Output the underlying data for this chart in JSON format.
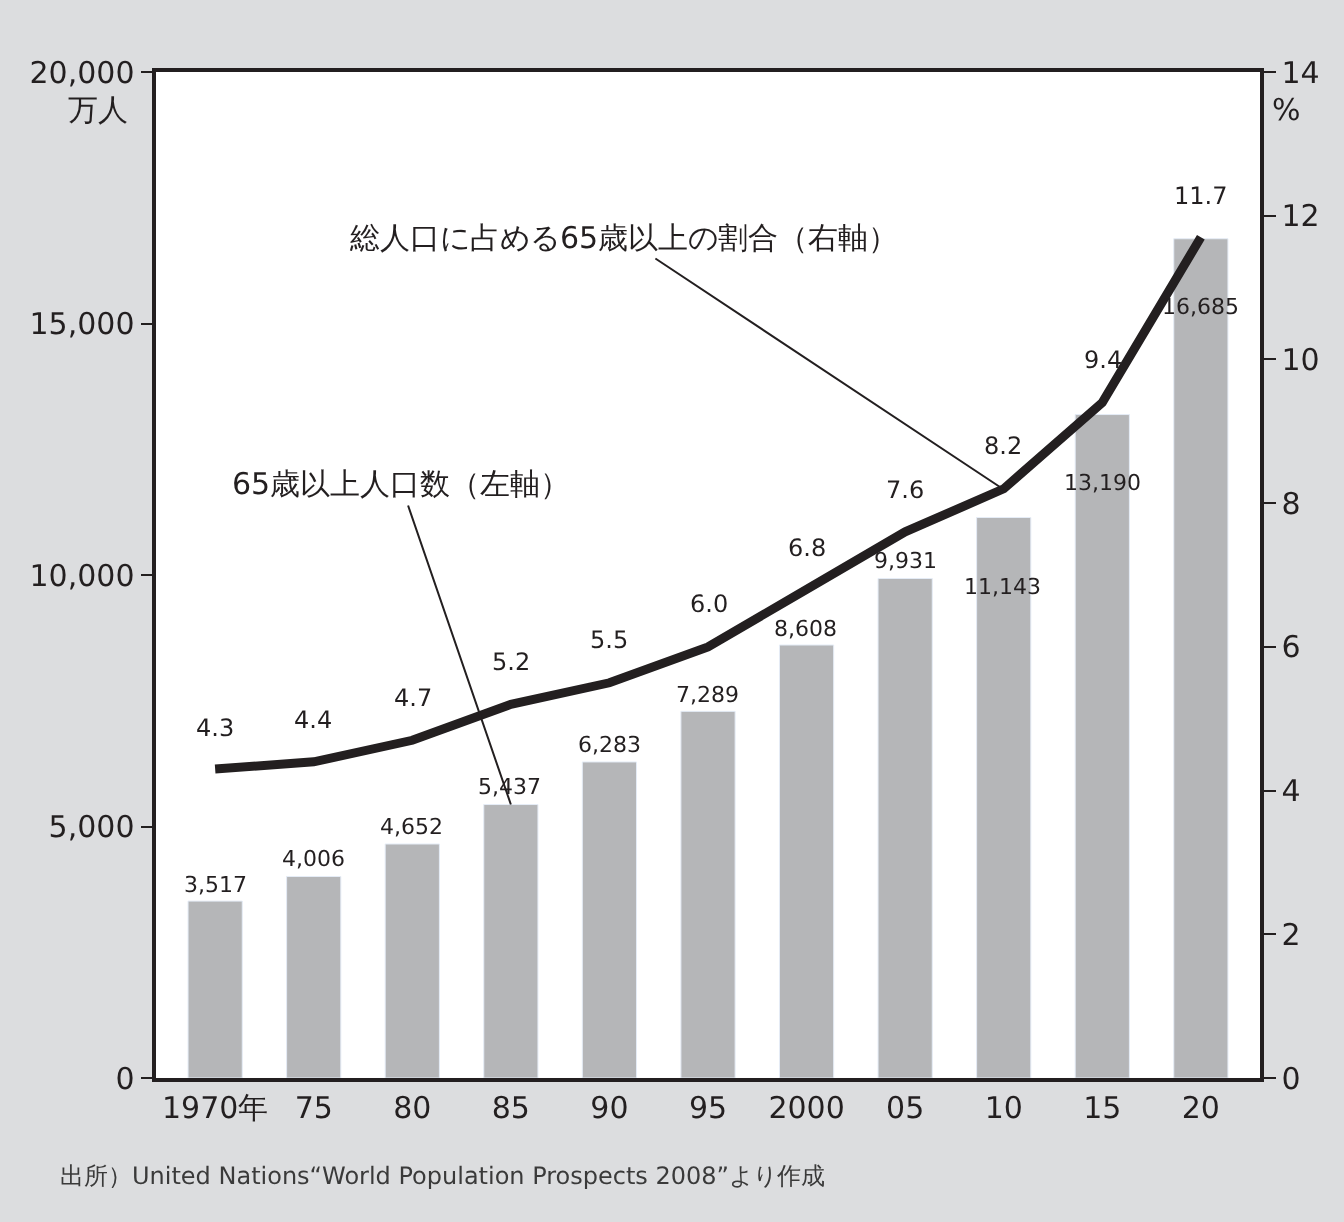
{
  "chart_data": {
    "type": "bar",
    "categories": [
      "1970年",
      "75",
      "80",
      "85",
      "90",
      "95",
      "2000",
      "05",
      "10",
      "15",
      "20"
    ],
    "ylabel": "万人",
    "y2label": "%",
    "series": [
      {
        "color": "#b5b6b8",
        "values": [
          3517,
          4006,
          4652,
          5437,
          6283,
          7289,
          8608,
          9931,
          11143,
          13190,
          16685
        ],
        "value_labels": [
          "3,517",
          "4,006",
          "4,652",
          "5,437",
          "6,283",
          "7,289",
          "8,608",
          "9,931",
          "11,143",
          "13,190",
          "16,685"
        ]
      },
      {
        "type": "line",
        "axis": "y2",
        "color": "#231f20",
        "values": [
          4.3,
          4.4,
          4.7,
          5.2,
          5.5,
          6.0,
          6.8,
          7.6,
          8.2,
          9.4,
          11.7
        ],
        "value_labels": [
          "4.3",
          "4.4",
          "4.7",
          "5.2",
          "5.5",
          "6.0",
          "6.8",
          "7.6",
          "8.2",
          "9.4",
          "11.7"
        ]
      }
    ],
    "ylim": [
      0,
      20000
    ],
    "yticks": [
      {
        "value": 0,
        "label": "0"
      },
      {
        "value": 5000,
        "label": "5,000"
      },
      {
        "value": 10000,
        "label": "10,000"
      },
      {
        "value": 15000,
        "label": "15,000"
      },
      {
        "value": 20000,
        "label": "20,000"
      }
    ],
    "y2lim": [
      0,
      14
    ],
    "y2ticks": [
      0,
      2,
      4,
      6,
      8,
      10,
      12,
      14
    ],
    "annotations": [
      {
        "text": "総人口に占める65歳以上の割合（右軸）",
        "x": "10",
        "y": 11700
      },
      {
        "text": "65歳以上人口数（左軸）",
        "x": "85",
        "y": 5437
      },
      "出所）United Nations“World Population Prospects 2008”より作成"
    ],
    "legend": false,
    "marker": "none",
    "line_style": "solid"
  }
}
